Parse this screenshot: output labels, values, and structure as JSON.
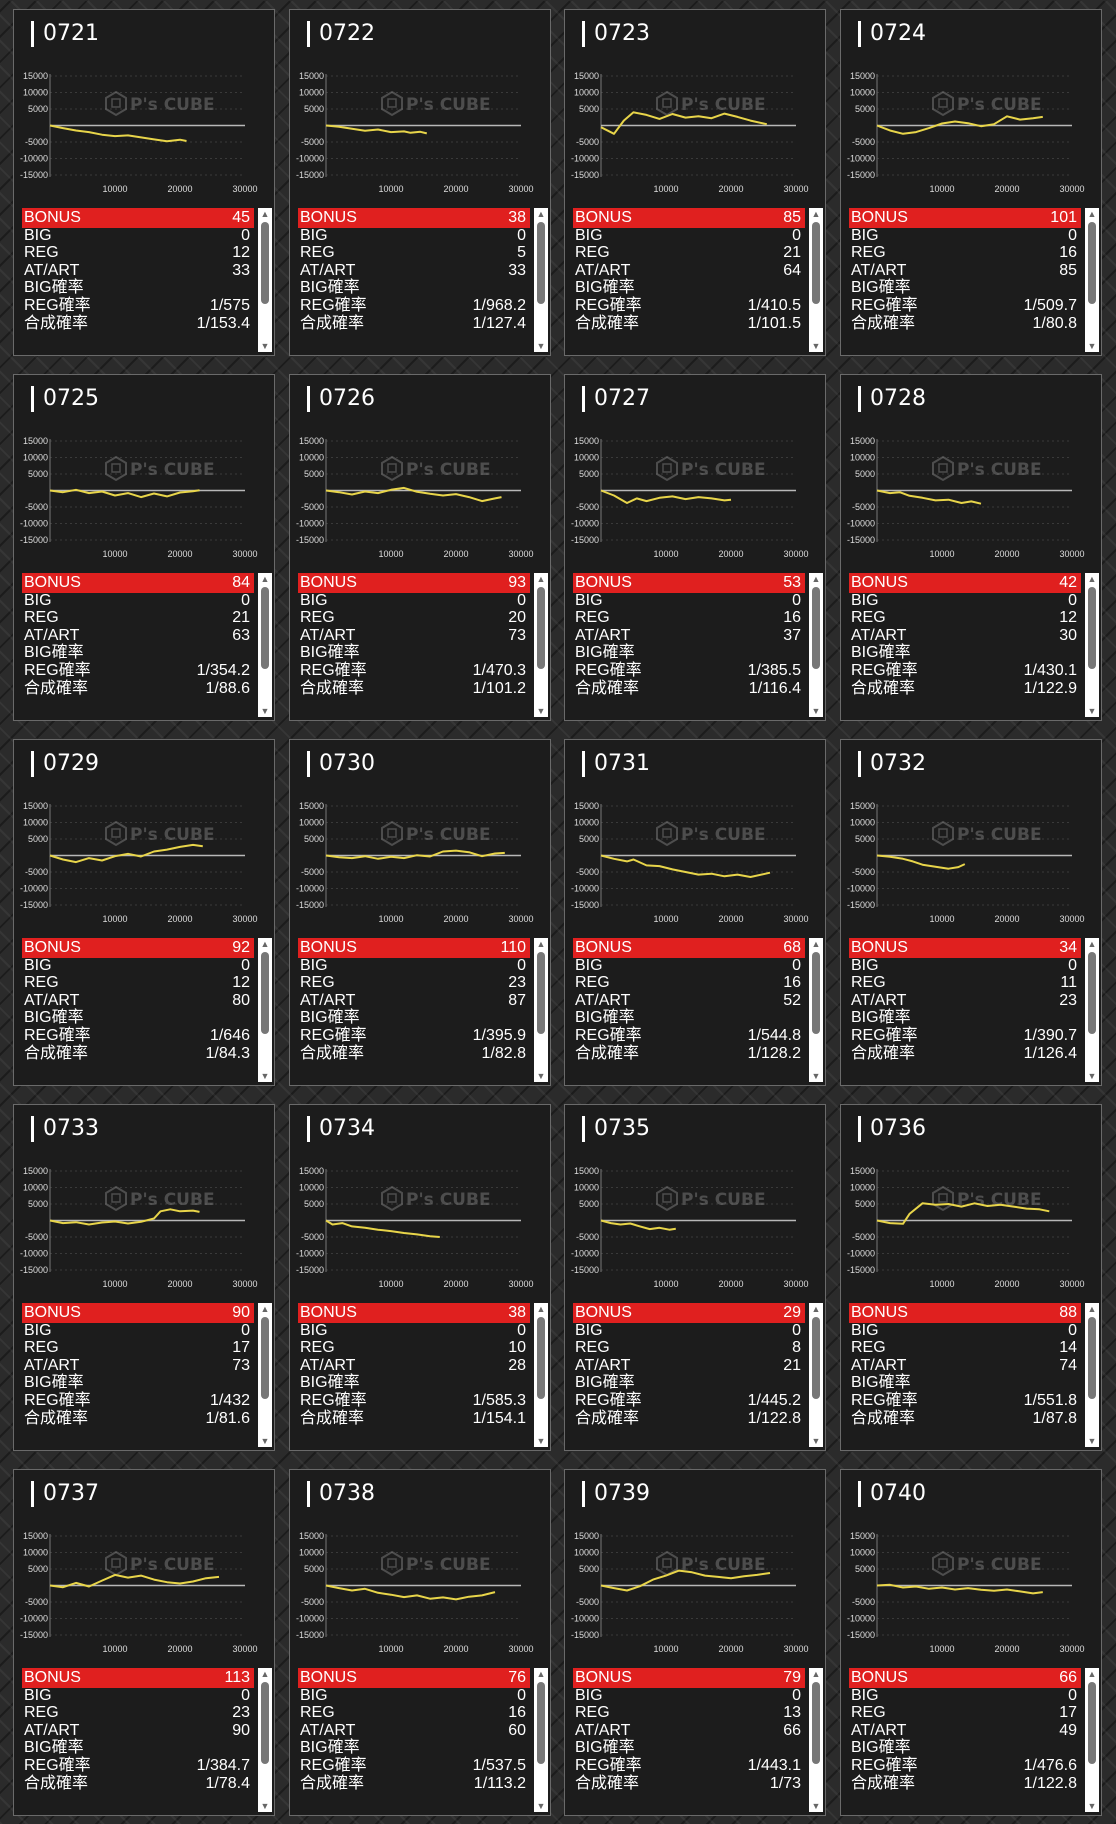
{
  "watermark": "P's CUBE",
  "series_color": "#e8d54a",
  "stat_labels": [
    "BONUS",
    "BIG",
    "REG",
    "AT/ART",
    "BIG確率",
    "REG確率",
    "合成確率"
  ],
  "chart_axes": {
    "y_ticks": [
      "15000",
      "10000",
      "5000",
      "-5000",
      "-10000",
      "-15000"
    ],
    "x_ticks": [
      "10000",
      "20000",
      "30000"
    ],
    "ylim": [
      -15000,
      15000
    ],
    "xlim": [
      0,
      30000
    ]
  },
  "machines": [
    {
      "id": "0721",
      "bonus": "45",
      "big": "0",
      "reg": "12",
      "at_art": "33",
      "big_rate": "",
      "reg_rate": "1/575",
      "combined_rate": "1/153.4",
      "graph": [
        [
          0,
          0
        ],
        [
          2000,
          -800
        ],
        [
          4000,
          -1500
        ],
        [
          6000,
          -2000
        ],
        [
          8000,
          -2800
        ],
        [
          10000,
          -3200
        ],
        [
          12000,
          -3000
        ],
        [
          14000,
          -3600
        ],
        [
          16000,
          -4200
        ],
        [
          18000,
          -4800
        ],
        [
          20000,
          -4300
        ],
        [
          21000,
          -4700
        ]
      ]
    },
    {
      "id": "0722",
      "bonus": "38",
      "big": "0",
      "reg": "5",
      "at_art": "33",
      "big_rate": "",
      "reg_rate": "1/968.2",
      "combined_rate": "1/127.4",
      "graph": [
        [
          0,
          0
        ],
        [
          2000,
          -400
        ],
        [
          4000,
          -1000
        ],
        [
          6000,
          -1600
        ],
        [
          8000,
          -1200
        ],
        [
          10000,
          -2000
        ],
        [
          12000,
          -1800
        ],
        [
          13000,
          -2200
        ],
        [
          14500,
          -1900
        ],
        [
          15500,
          -2400
        ]
      ]
    },
    {
      "id": "0723",
      "bonus": "85",
      "big": "0",
      "reg": "21",
      "at_art": "64",
      "big_rate": "",
      "reg_rate": "1/410.5",
      "combined_rate": "1/101.5",
      "graph": [
        [
          0,
          -500
        ],
        [
          2000,
          -2500
        ],
        [
          3500,
          1500
        ],
        [
          5000,
          4000
        ],
        [
          7000,
          3200
        ],
        [
          9000,
          2000
        ],
        [
          11000,
          3500
        ],
        [
          13000,
          2400
        ],
        [
          15000,
          2800
        ],
        [
          17000,
          2200
        ],
        [
          19000,
          3600
        ],
        [
          21000,
          2600
        ],
        [
          23000,
          1500
        ],
        [
          25500,
          400
        ]
      ]
    },
    {
      "id": "0724",
      "bonus": "101",
      "big": "0",
      "reg": "16",
      "at_art": "85",
      "big_rate": "",
      "reg_rate": "1/509.7",
      "combined_rate": "1/80.8",
      "graph": [
        [
          0,
          0
        ],
        [
          2000,
          -1500
        ],
        [
          4000,
          -2500
        ],
        [
          6000,
          -2000
        ],
        [
          8000,
          -800
        ],
        [
          10000,
          600
        ],
        [
          12000,
          1200
        ],
        [
          14000,
          700
        ],
        [
          16000,
          -200
        ],
        [
          18000,
          400
        ],
        [
          20000,
          2800
        ],
        [
          22000,
          1800
        ],
        [
          24000,
          2200
        ],
        [
          25500,
          2600
        ]
      ]
    },
    {
      "id": "0725",
      "bonus": "84",
      "big": "0",
      "reg": "21",
      "at_art": "63",
      "big_rate": "",
      "reg_rate": "1/354.2",
      "combined_rate": "1/88.6",
      "graph": [
        [
          0,
          0
        ],
        [
          2000,
          -500
        ],
        [
          4000,
          200
        ],
        [
          6000,
          -800
        ],
        [
          8000,
          -300
        ],
        [
          10000,
          -1500
        ],
        [
          12000,
          -800
        ],
        [
          14000,
          -2000
        ],
        [
          16000,
          -900
        ],
        [
          18000,
          -1800
        ],
        [
          20000,
          -600
        ],
        [
          22000,
          -200
        ],
        [
          23000,
          100
        ]
      ]
    },
    {
      "id": "0726",
      "bonus": "93",
      "big": "0",
      "reg": "20",
      "at_art": "73",
      "big_rate": "",
      "reg_rate": "1/470.3",
      "combined_rate": "1/101.2",
      "graph": [
        [
          0,
          0
        ],
        [
          2000,
          -500
        ],
        [
          4000,
          -1200
        ],
        [
          6000,
          -300
        ],
        [
          8000,
          -800
        ],
        [
          10000,
          200
        ],
        [
          12000,
          800
        ],
        [
          14000,
          -400
        ],
        [
          16000,
          -1000
        ],
        [
          18000,
          -1500
        ],
        [
          20000,
          -1100
        ],
        [
          22000,
          -2000
        ],
        [
          24000,
          -3200
        ],
        [
          26000,
          -2400
        ],
        [
          27000,
          -2000
        ]
      ]
    },
    {
      "id": "0727",
      "bonus": "53",
      "big": "0",
      "reg": "16",
      "at_art": "37",
      "big_rate": "",
      "reg_rate": "1/385.5",
      "combined_rate": "1/116.4",
      "graph": [
        [
          0,
          0
        ],
        [
          2000,
          -1500
        ],
        [
          4000,
          -3800
        ],
        [
          5500,
          -2400
        ],
        [
          7000,
          -3200
        ],
        [
          9000,
          -2200
        ],
        [
          11000,
          -1800
        ],
        [
          13000,
          -2600
        ],
        [
          15000,
          -2000
        ],
        [
          17000,
          -2400
        ],
        [
          19000,
          -3000
        ],
        [
          20000,
          -2800
        ]
      ]
    },
    {
      "id": "0728",
      "bonus": "42",
      "big": "0",
      "reg": "12",
      "at_art": "30",
      "big_rate": "",
      "reg_rate": "1/430.1",
      "combined_rate": "1/122.9",
      "graph": [
        [
          0,
          0
        ],
        [
          2000,
          -800
        ],
        [
          3500,
          -500
        ],
        [
          5000,
          -1600
        ],
        [
          7000,
          -2200
        ],
        [
          9000,
          -3000
        ],
        [
          11000,
          -2800
        ],
        [
          13000,
          -3800
        ],
        [
          14500,
          -3300
        ],
        [
          16000,
          -4000
        ]
      ]
    },
    {
      "id": "0729",
      "bonus": "92",
      "big": "0",
      "reg": "12",
      "at_art": "80",
      "big_rate": "",
      "reg_rate": "1/646",
      "combined_rate": "1/84.3",
      "graph": [
        [
          0,
          0
        ],
        [
          2000,
          -1200
        ],
        [
          4000,
          -2000
        ],
        [
          6000,
          -800
        ],
        [
          8000,
          -1500
        ],
        [
          10000,
          -200
        ],
        [
          12000,
          500
        ],
        [
          14000,
          -300
        ],
        [
          16000,
          1200
        ],
        [
          18000,
          1800
        ],
        [
          20000,
          2600
        ],
        [
          22000,
          3200
        ],
        [
          23500,
          2800
        ]
      ]
    },
    {
      "id": "0730",
      "bonus": "110",
      "big": "0",
      "reg": "23",
      "at_art": "87",
      "big_rate": "",
      "reg_rate": "1/395.9",
      "combined_rate": "1/82.8",
      "graph": [
        [
          0,
          0
        ],
        [
          2000,
          -500
        ],
        [
          4000,
          -800
        ],
        [
          6000,
          -200
        ],
        [
          8000,
          -1000
        ],
        [
          10000,
          -400
        ],
        [
          12000,
          -800
        ],
        [
          14000,
          100
        ],
        [
          16000,
          -300
        ],
        [
          18000,
          1200
        ],
        [
          20000,
          1500
        ],
        [
          22000,
          1000
        ],
        [
          24000,
          -200
        ],
        [
          26000,
          600
        ],
        [
          27500,
          800
        ]
      ]
    },
    {
      "id": "0731",
      "bonus": "68",
      "big": "0",
      "reg": "16",
      "at_art": "52",
      "big_rate": "",
      "reg_rate": "1/544.8",
      "combined_rate": "1/128.2",
      "graph": [
        [
          0,
          0
        ],
        [
          2000,
          -1000
        ],
        [
          4000,
          -1800
        ],
        [
          5000,
          -1200
        ],
        [
          7000,
          -3000
        ],
        [
          9000,
          -3200
        ],
        [
          11000,
          -4200
        ],
        [
          13000,
          -5000
        ],
        [
          15000,
          -5800
        ],
        [
          17000,
          -5500
        ],
        [
          19000,
          -6300
        ],
        [
          21000,
          -5800
        ],
        [
          23000,
          -6500
        ],
        [
          26000,
          -5200
        ]
      ]
    },
    {
      "id": "0732",
      "bonus": "34",
      "big": "0",
      "reg": "11",
      "at_art": "23",
      "big_rate": "",
      "reg_rate": "1/390.7",
      "combined_rate": "1/126.4",
      "graph": [
        [
          0,
          0
        ],
        [
          2000,
          -400
        ],
        [
          4000,
          -1000
        ],
        [
          5500,
          -1800
        ],
        [
          7000,
          -2800
        ],
        [
          9000,
          -3400
        ],
        [
          11000,
          -4000
        ],
        [
          12500,
          -3500
        ],
        [
          13500,
          -2600
        ]
      ]
    },
    {
      "id": "0733",
      "bonus": "90",
      "big": "0",
      "reg": "17",
      "at_art": "73",
      "big_rate": "",
      "reg_rate": "1/432",
      "combined_rate": "1/81.6",
      "graph": [
        [
          0,
          0
        ],
        [
          2000,
          -800
        ],
        [
          4000,
          -500
        ],
        [
          6000,
          -1200
        ],
        [
          8000,
          -600
        ],
        [
          10000,
          -300
        ],
        [
          12000,
          -900
        ],
        [
          14000,
          -400
        ],
        [
          16000,
          600
        ],
        [
          17000,
          2800
        ],
        [
          18500,
          3400
        ],
        [
          20000,
          2800
        ],
        [
          22000,
          3000
        ],
        [
          23000,
          2600
        ]
      ]
    },
    {
      "id": "0734",
      "bonus": "38",
      "big": "0",
      "reg": "10",
      "at_art": "28",
      "big_rate": "",
      "reg_rate": "1/585.3",
      "combined_rate": "1/154.1",
      "graph": [
        [
          0,
          0
        ],
        [
          1000,
          -1200
        ],
        [
          2500,
          -800
        ],
        [
          4000,
          -1800
        ],
        [
          6000,
          -2200
        ],
        [
          8000,
          -2800
        ],
        [
          10000,
          -3200
        ],
        [
          12000,
          -3800
        ],
        [
          14000,
          -4200
        ],
        [
          16000,
          -4800
        ],
        [
          17500,
          -5000
        ]
      ]
    },
    {
      "id": "0735",
      "bonus": "29",
      "big": "0",
      "reg": "8",
      "at_art": "21",
      "big_rate": "",
      "reg_rate": "1/445.2",
      "combined_rate": "1/122.8",
      "graph": [
        [
          0,
          0
        ],
        [
          1500,
          -800
        ],
        [
          3000,
          -1200
        ],
        [
          4500,
          -900
        ],
        [
          6000,
          -1800
        ],
        [
          7500,
          -2600
        ],
        [
          9000,
          -2200
        ],
        [
          10500,
          -2800
        ],
        [
          11500,
          -2500
        ]
      ]
    },
    {
      "id": "0736",
      "bonus": "88",
      "big": "0",
      "reg": "14",
      "at_art": "74",
      "big_rate": "",
      "reg_rate": "1/551.8",
      "combined_rate": "1/87.8",
      "graph": [
        [
          0,
          0
        ],
        [
          2000,
          -800
        ],
        [
          4000,
          -1000
        ],
        [
          5000,
          2000
        ],
        [
          7000,
          5200
        ],
        [
          9000,
          4800
        ],
        [
          11000,
          5000
        ],
        [
          13000,
          4200
        ],
        [
          15000,
          5200
        ],
        [
          17000,
          4400
        ],
        [
          19000,
          4800
        ],
        [
          21000,
          4200
        ],
        [
          23000,
          3600
        ],
        [
          25000,
          3400
        ],
        [
          26500,
          2800
        ]
      ]
    },
    {
      "id": "0737",
      "bonus": "113",
      "big": "0",
      "reg": "23",
      "at_art": "90",
      "big_rate": "",
      "reg_rate": "1/384.7",
      "combined_rate": "1/78.4",
      "graph": [
        [
          0,
          0
        ],
        [
          2000,
          -500
        ],
        [
          4000,
          800
        ],
        [
          6000,
          -300
        ],
        [
          8000,
          1500
        ],
        [
          10000,
          3200
        ],
        [
          12000,
          2400
        ],
        [
          14000,
          3000
        ],
        [
          16000,
          1800
        ],
        [
          18000,
          1000
        ],
        [
          20000,
          600
        ],
        [
          22000,
          1200
        ],
        [
          24000,
          2200
        ],
        [
          26000,
          2600
        ]
      ]
    },
    {
      "id": "0738",
      "bonus": "76",
      "big": "0",
      "reg": "16",
      "at_art": "60",
      "big_rate": "",
      "reg_rate": "1/537.5",
      "combined_rate": "1/113.2",
      "graph": [
        [
          0,
          0
        ],
        [
          2000,
          -800
        ],
        [
          4000,
          -1500
        ],
        [
          6000,
          -1000
        ],
        [
          8000,
          -2200
        ],
        [
          10000,
          -2800
        ],
        [
          12000,
          -3500
        ],
        [
          14000,
          -3000
        ],
        [
          16000,
          -4000
        ],
        [
          18000,
          -3600
        ],
        [
          20000,
          -4200
        ],
        [
          22000,
          -3400
        ],
        [
          24000,
          -3000
        ],
        [
          26000,
          -2000
        ]
      ]
    },
    {
      "id": "0739",
      "bonus": "79",
      "big": "0",
      "reg": "13",
      "at_art": "66",
      "big_rate": "",
      "reg_rate": "1/443.1",
      "combined_rate": "1/73",
      "graph": [
        [
          0,
          0
        ],
        [
          2000,
          -800
        ],
        [
          4000,
          -1500
        ],
        [
          6000,
          -200
        ],
        [
          8000,
          1800
        ],
        [
          10000,
          3000
        ],
        [
          12000,
          4500
        ],
        [
          14000,
          4000
        ],
        [
          16000,
          3000
        ],
        [
          18000,
          2600
        ],
        [
          20000,
          2200
        ],
        [
          22000,
          2800
        ],
        [
          24000,
          3200
        ],
        [
          26000,
          3800
        ]
      ]
    },
    {
      "id": "0740",
      "bonus": "66",
      "big": "0",
      "reg": "17",
      "at_art": "49",
      "big_rate": "",
      "reg_rate": "1/476.6",
      "combined_rate": "1/122.8",
      "graph": [
        [
          0,
          0
        ],
        [
          2000,
          200
        ],
        [
          4000,
          -600
        ],
        [
          6000,
          -300
        ],
        [
          8000,
          -1000
        ],
        [
          10000,
          -600
        ],
        [
          12000,
          -1200
        ],
        [
          14000,
          -800
        ],
        [
          16000,
          -1300
        ],
        [
          18000,
          -1600
        ],
        [
          20000,
          -1200
        ],
        [
          22000,
          -1800
        ],
        [
          24000,
          -2400
        ],
        [
          25500,
          -2000
        ]
      ]
    }
  ]
}
